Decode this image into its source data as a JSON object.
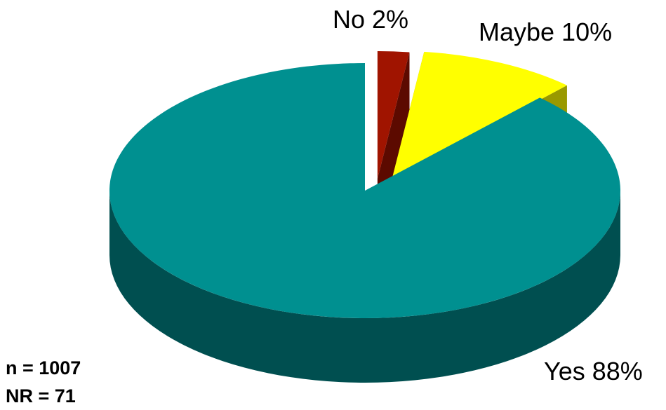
{
  "chart_data": {
    "type": "pie",
    "style": "3d-exploded",
    "slices": [
      {
        "label": "Yes 88%",
        "name": "Yes",
        "value": 88,
        "color": "#009090",
        "side_color": "#004f50",
        "exploded": false
      },
      {
        "label": "No 2%",
        "name": "No",
        "value": 2,
        "color": "#a01400",
        "side_color": "#5c0a00",
        "exploded": true
      },
      {
        "label": "Maybe 10%",
        "name": "Maybe",
        "value": 10,
        "color": "#ffff00",
        "side_color": "#999900",
        "exploded": true
      }
    ],
    "notes": [
      "n = 1007",
      "NR = 71"
    ]
  }
}
